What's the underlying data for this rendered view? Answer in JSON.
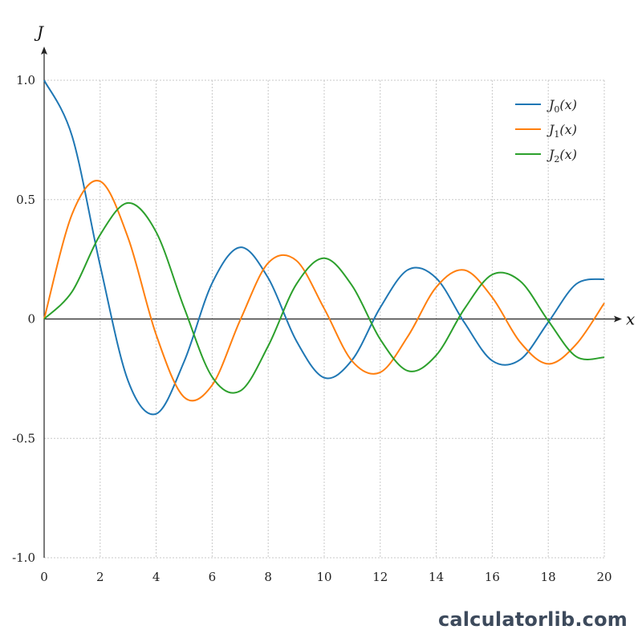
{
  "chart_data": {
    "type": "line",
    "xlabel": "x",
    "ylabel": "J",
    "xlim": [
      0,
      20
    ],
    "ylim": [
      -1.0,
      1.0
    ],
    "x_ticks": [
      0,
      2,
      4,
      6,
      8,
      10,
      12,
      14,
      16,
      18,
      20
    ],
    "y_ticks": [
      1.0,
      0.5,
      0,
      -0.5,
      -1.0
    ],
    "x_tick_labels": [
      "0",
      "2",
      "4",
      "6",
      "8",
      "10",
      "12",
      "14",
      "16",
      "18",
      "20"
    ],
    "y_tick_labels": [
      "1.0",
      "0.5",
      "0",
      "-0.5",
      "-1.0"
    ],
    "grid": true,
    "legend_position": "top-right",
    "x": [
      0,
      1,
      2,
      3,
      4,
      5,
      6,
      7,
      8,
      9,
      10,
      11,
      12,
      13,
      14,
      15,
      16,
      17,
      18,
      19,
      20
    ],
    "series": [
      {
        "name": "J0(x)",
        "name_base": "J",
        "name_sub": "0",
        "name_arg": "(x)",
        "color": "#1f77b4",
        "values": [
          1.0,
          0.7652,
          0.2239,
          -0.2601,
          -0.3971,
          -0.1776,
          0.1506,
          0.3001,
          0.1717,
          -0.0903,
          -0.2459,
          -0.1712,
          0.0477,
          0.2069,
          0.1711,
          -0.0142,
          -0.1749,
          -0.1699,
          -0.0134,
          0.1466,
          0.167
        ]
      },
      {
        "name": "J1(x)",
        "name_base": "J",
        "name_sub": "1",
        "name_arg": "(x)",
        "color": "#ff7f0e",
        "values": [
          0.0,
          0.4401,
          0.5767,
          0.3391,
          -0.066,
          -0.3276,
          -0.2767,
          -0.0047,
          0.2346,
          0.2453,
          0.0435,
          -0.1768,
          -0.2234,
          -0.0703,
          0.1334,
          0.2051,
          0.0904,
          -0.0977,
          -0.188,
          -0.1057,
          0.0668
        ]
      },
      {
        "name": "J2(x)",
        "name_base": "J",
        "name_sub": "2",
        "name_arg": "(x)",
        "color": "#2ca02c",
        "values": [
          0.0,
          0.1149,
          0.3528,
          0.4861,
          0.3641,
          0.0466,
          -0.2429,
          -0.3014,
          -0.113,
          0.1448,
          0.2546,
          0.139,
          -0.0849,
          -0.2177,
          -0.152,
          0.0416,
          0.1862,
          0.1584,
          -0.0075,
          -0.1578,
          -0.1603
        ]
      }
    ]
  },
  "watermark": "calculatorlib.com"
}
